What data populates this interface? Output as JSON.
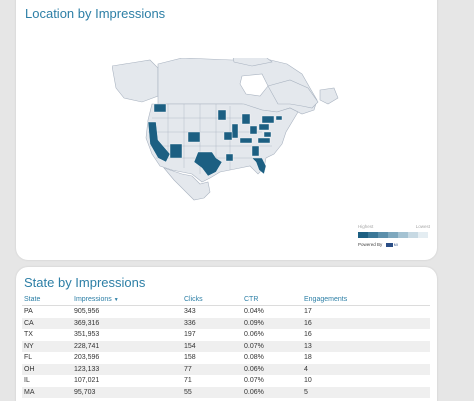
{
  "map_card": {
    "title": "Location by Impressions",
    "legend": {
      "high_label": "Highest",
      "low_label": "Lowest",
      "colors": [
        "#1c5f82",
        "#3a7797",
        "#5b8fab",
        "#7ea8be",
        "#a4c2d2",
        "#c7d9e3",
        "#e4edf2"
      ],
      "powered_by": "Powered By",
      "brand": "MI"
    },
    "colors": {
      "highlight": "#1c5f82",
      "base": "#e4e8ed",
      "border": "#a9b3c0"
    }
  },
  "table_card": {
    "title": "State by Impressions",
    "columns": [
      "State",
      "Impressions",
      "Clicks",
      "CTR",
      "Engagements"
    ],
    "sort_icon": "sort-down-icon",
    "rows": [
      {
        "state": "PA",
        "impressions": "905,956",
        "clicks": "343",
        "ctr": "0.04%",
        "engagements": "17"
      },
      {
        "state": "CA",
        "impressions": "369,316",
        "clicks": "336",
        "ctr": "0.09%",
        "engagements": "16"
      },
      {
        "state": "TX",
        "impressions": "351,953",
        "clicks": "197",
        "ctr": "0.06%",
        "engagements": "16"
      },
      {
        "state": "NY",
        "impressions": "228,741",
        "clicks": "154",
        "ctr": "0.07%",
        "engagements": "13"
      },
      {
        "state": "FL",
        "impressions": "203,596",
        "clicks": "158",
        "ctr": "0.08%",
        "engagements": "18"
      },
      {
        "state": "OH",
        "impressions": "123,133",
        "clicks": "77",
        "ctr": "0.06%",
        "engagements": "4"
      },
      {
        "state": "IL",
        "impressions": "107,021",
        "clicks": "71",
        "ctr": "0.07%",
        "engagements": "10"
      },
      {
        "state": "MA",
        "impressions": "95,703",
        "clicks": "55",
        "ctr": "0.06%",
        "engagements": "5"
      }
    ]
  }
}
